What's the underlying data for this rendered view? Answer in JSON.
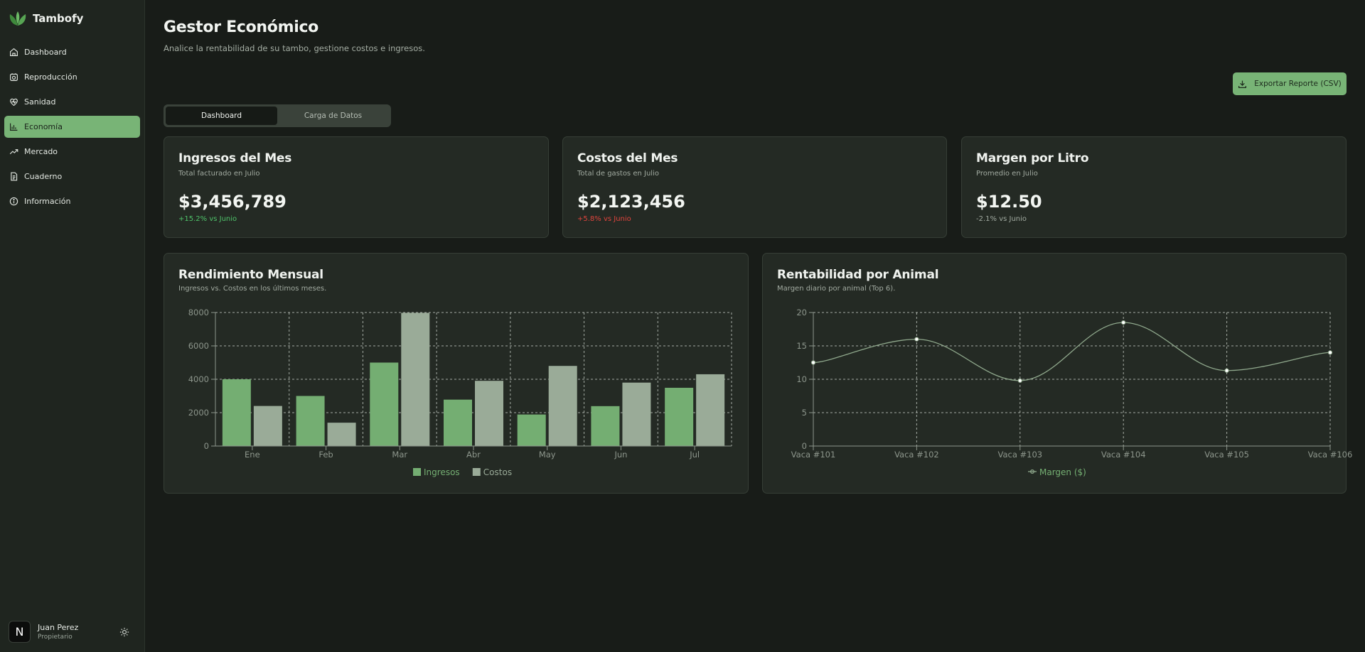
{
  "app": {
    "name": "Tambofy"
  },
  "sidebar": {
    "items": [
      {
        "label": "Dashboard",
        "icon": "home-icon"
      },
      {
        "label": "Reproducción",
        "icon": "reproduction-icon"
      },
      {
        "label": "Sanidad",
        "icon": "health-icon"
      },
      {
        "label": "Economía",
        "icon": "bar-chart-icon",
        "active": true
      },
      {
        "label": "Mercado",
        "icon": "trend-icon"
      },
      {
        "label": "Cuaderno",
        "icon": "notebook-icon"
      },
      {
        "label": "Información",
        "icon": "info-icon"
      }
    ]
  },
  "user": {
    "initial": "N",
    "name": "Juan Perez",
    "role": "Propietario"
  },
  "header": {
    "title": "Gestor Económico",
    "subtitle": "Analice la rentabilidad de su tambo, gestione costos e ingresos.",
    "export_label": "Exportar Reporte (CSV)"
  },
  "tabs": [
    {
      "label": "Dashboard",
      "active": true
    },
    {
      "label": "Carga de Datos",
      "active": false
    }
  ],
  "kpis": [
    {
      "title": "Ingresos del Mes",
      "subtitle": "Total facturado en Julio",
      "value": "$3,456,789",
      "change": "+15.2% vs Junio",
      "trend": "positive"
    },
    {
      "title": "Costos del Mes",
      "subtitle": "Total de gastos en Julio",
      "value": "$2,123,456",
      "change": "+5.8% vs Junio",
      "trend": "negative"
    },
    {
      "title": "Margen por Litro",
      "subtitle": "Promedio en Julio",
      "value": "$12.50",
      "change": "-2.1% vs Junio",
      "trend": "neutral"
    }
  ],
  "charts": {
    "monthly": {
      "title": "Rendimiento Mensual",
      "subtitle": "Ingresos vs. Costos en los últimos meses."
    },
    "animal": {
      "title": "Rentabilidad por Animal",
      "subtitle": "Margen diario por animal (Top 6)."
    }
  },
  "colors": {
    "accent": "#78b476",
    "ingresos": "#74ae72",
    "costos": "#9aab98",
    "line": "#8fa88c",
    "positive": "#4fc36a",
    "negative": "#e0443d"
  },
  "chart_data": [
    {
      "type": "bar",
      "categories": [
        "Ene",
        "Feb",
        "Mar",
        "Abr",
        "May",
        "Jun",
        "Jul"
      ],
      "series": [
        {
          "name": "Ingresos",
          "values": [
            4000,
            3000,
            5000,
            2780,
            1890,
            2390,
            3490
          ]
        },
        {
          "name": "Costos",
          "values": [
            2400,
            1398,
            7980,
            3908,
            4800,
            3800,
            4300
          ]
        }
      ],
      "ylim": [
        0,
        8000
      ],
      "yticks": [
        0,
        2000,
        4000,
        6000,
        8000
      ],
      "grid": true,
      "legend": "bottom-center"
    },
    {
      "type": "line",
      "categories": [
        "Vaca #101",
        "Vaca #102",
        "Vaca #103",
        "Vaca #104",
        "Vaca #105",
        "Vaca #106"
      ],
      "series": [
        {
          "name": "Margen ($)",
          "values": [
            12.5,
            16.0,
            9.8,
            18.5,
            11.3,
            14.0
          ]
        }
      ],
      "ylim": [
        0,
        20
      ],
      "yticks": [
        0,
        5,
        10,
        15,
        20
      ],
      "grid": true,
      "legend": "bottom-center"
    }
  ]
}
